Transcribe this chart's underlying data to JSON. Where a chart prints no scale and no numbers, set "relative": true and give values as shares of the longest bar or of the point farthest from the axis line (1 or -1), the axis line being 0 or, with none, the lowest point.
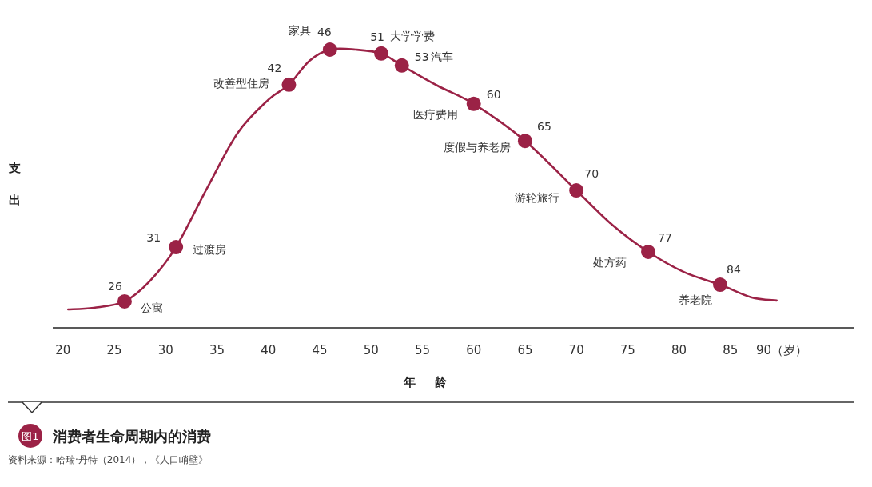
{
  "chart_data": {
    "type": "line",
    "title": "消费者生命周期内的消费",
    "xlabel": "年龄",
    "ylabel": "支出",
    "relative": true,
    "xlim": [
      19,
      97
    ],
    "xticks": [
      20,
      25,
      30,
      35,
      40,
      45,
      50,
      55,
      60,
      65,
      70,
      75,
      80,
      85,
      {
        "value": 90,
        "label": "90（岁）"
      }
    ],
    "grid": false,
    "series": [
      {
        "color": "#9b2246",
        "x": [
          20.5,
          23,
          26,
          28.5,
          31,
          34,
          37,
          40,
          42,
          44,
          46,
          48.5,
          51,
          53,
          56.5,
          60,
          65,
          70,
          73.5,
          77,
          80.5,
          84,
          87,
          89.5
        ],
        "values": [
          0.066,
          0.072,
          0.095,
          0.17,
          0.29,
          0.5,
          0.7,
          0.82,
          0.874,
          0.96,
          1.0,
          1.0,
          0.986,
          0.943,
          0.87,
          0.805,
          0.672,
          0.494,
          0.37,
          0.273,
          0.2,
          0.155,
          0.11,
          0.098
        ]
      },
      {
        "type": "scatter",
        "marker": "circle",
        "color": "#9b2246",
        "x": [
          26,
          31,
          42,
          46,
          51,
          53,
          60,
          65,
          70,
          77,
          84
        ],
        "values": [
          0.095,
          0.29,
          0.874,
          1.0,
          0.986,
          0.943,
          0.805,
          0.672,
          0.494,
          0.273,
          0.155
        ]
      }
    ],
    "annotations": [
      "图1",
      "资料来源：哈瑞·丹特（2014），《人口峭壁》",
      {
        "text": "26",
        "x": 26,
        "y": 0.095
      },
      {
        "text": "公寓",
        "x": 26,
        "y": 0.095
      },
      {
        "text": "31",
        "x": 31,
        "y": 0.29
      },
      {
        "text": "过渡房",
        "x": 31,
        "y": 0.29
      },
      {
        "text": "42",
        "x": 42,
        "y": 0.874
      },
      {
        "text": "改善型住房",
        "x": 42,
        "y": 0.874
      },
      {
        "text": "46",
        "x": 46,
        "y": 1.0
      },
      {
        "text": "家具",
        "x": 46,
        "y": 1.0
      },
      {
        "text": "51",
        "x": 51,
        "y": 0.986
      },
      {
        "text": "大学学费",
        "x": 51,
        "y": 0.986
      },
      {
        "text": "53",
        "x": 53,
        "y": 0.943
      },
      {
        "text": "汽车",
        "x": 53,
        "y": 0.943
      },
      {
        "text": "60",
        "x": 60,
        "y": 0.805
      },
      {
        "text": "医疗费用",
        "x": 60,
        "y": 0.805
      },
      {
        "text": "65",
        "x": 65,
        "y": 0.672
      },
      {
        "text": "度假与养老房",
        "x": 65,
        "y": 0.672
      },
      {
        "text": "70",
        "x": 70,
        "y": 0.494
      },
      {
        "text": "游轮旅行",
        "x": 70,
        "y": 0.494
      },
      {
        "text": "77",
        "x": 77,
        "y": 0.273
      },
      {
        "text": "处方药",
        "x": 77,
        "y": 0.273
      },
      {
        "text": "84",
        "x": 84,
        "y": 0.155
      },
      {
        "text": "养老院",
        "x": 84,
        "y": 0.155
      }
    ]
  }
}
